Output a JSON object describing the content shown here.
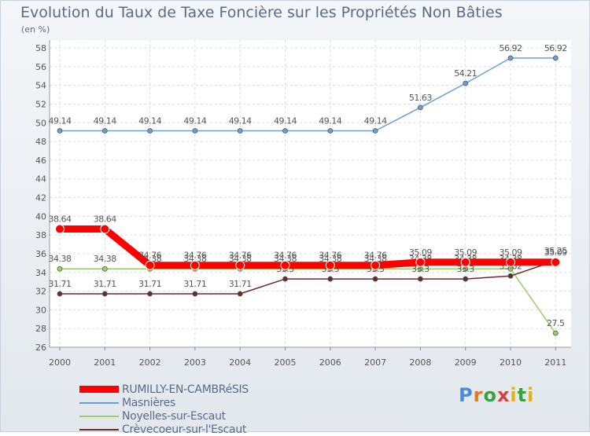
{
  "title": "Evolution du Taux de Taxe Foncière sur les Propriétés Non Bâties",
  "subtitle": "(en %)",
  "logo": {
    "letters": [
      "P",
      "r",
      "o",
      "x",
      "i",
      "t",
      "i"
    ],
    "colors": [
      "#4a8ad6",
      "#e07b22",
      "#3aa23a",
      "#d64040",
      "#e0b020",
      "#3aa23a",
      "#e0b020"
    ]
  },
  "chart_data": {
    "type": "line",
    "title": "Evolution du Taux de Taxe Foncière sur les Propriétés Non Bâties",
    "ylabel": "(en %)",
    "ylim": [
      26,
      58
    ],
    "yticks": [
      26,
      28,
      30,
      32,
      34,
      36,
      38,
      40,
      42,
      44,
      46,
      48,
      50,
      52,
      54,
      56,
      58
    ],
    "categories": [
      "2000",
      "2001",
      "2002",
      "2003",
      "2004",
      "2005",
      "2006",
      "2007",
      "2008",
      "2009",
      "2010",
      "2011"
    ],
    "series": [
      {
        "name": "Masnières",
        "color": "#6a9fd4",
        "values": [
          49.14,
          49.14,
          49.14,
          49.14,
          49.14,
          49.14,
          49.14,
          49.14,
          51.63,
          54.21,
          56.92,
          56.92
        ],
        "labels": [
          "49.14",
          "49.14",
          "49.14",
          "49.14",
          "49.14",
          "49.14",
          "49.14",
          "49.14",
          "51.63",
          "54.21",
          "56.92",
          "56.92"
        ]
      },
      {
        "name": "Noyelles-sur-Escaut",
        "color": "#99d066",
        "values": [
          34.38,
          34.38,
          34.38,
          34.38,
          34.38,
          34.38,
          34.38,
          34.38,
          34.38,
          34.38,
          34.38,
          27.5
        ],
        "labels": [
          "34.38",
          "34.38",
          "34.38",
          "34.38",
          "34.38",
          "34.38",
          "34.38",
          "34.38",
          "34.38",
          "34.38",
          "34.38",
          "27.5"
        ]
      },
      {
        "name": "Crèvecoeur-sur-l'Escaut",
        "color": "#6b2a2a",
        "values": [
          31.71,
          31.71,
          31.71,
          31.71,
          31.71,
          33.3,
          33.3,
          33.3,
          33.3,
          33.3,
          33.62,
          35.25
        ],
        "labels": [
          "31.71",
          "31.71",
          "31.71",
          "31.71",
          "31.71",
          "33.3",
          "33.3",
          "33.3",
          "33.3",
          "33.3",
          "33.62",
          "35.25"
        ]
      },
      {
        "name": "RUMILLY-EN-CAMBRéSIS",
        "color": "#ff0000",
        "values": [
          38.64,
          38.64,
          34.76,
          34.76,
          34.76,
          34.76,
          34.76,
          34.76,
          35.09,
          35.09,
          35.09,
          35.09
        ],
        "labels": [
          "38.64",
          "38.64",
          "34.76",
          "34.76",
          "34.76",
          "34.76",
          "34.76",
          "34.76",
          "35.09",
          "35.09",
          "35.09",
          "35.09"
        ]
      }
    ],
    "legend": [
      {
        "name": "RUMILLY-EN-CAMBRéSIS",
        "color": "#ff0000"
      },
      {
        "name": "Masnières",
        "color": "#6a9fd4"
      },
      {
        "name": "Noyelles-sur-Escaut",
        "color": "#99d066"
      },
      {
        "name": "Crèvecoeur-sur-l'Escaut",
        "color": "#6b2a2a"
      }
    ],
    "legend_position": "bottom-left"
  }
}
